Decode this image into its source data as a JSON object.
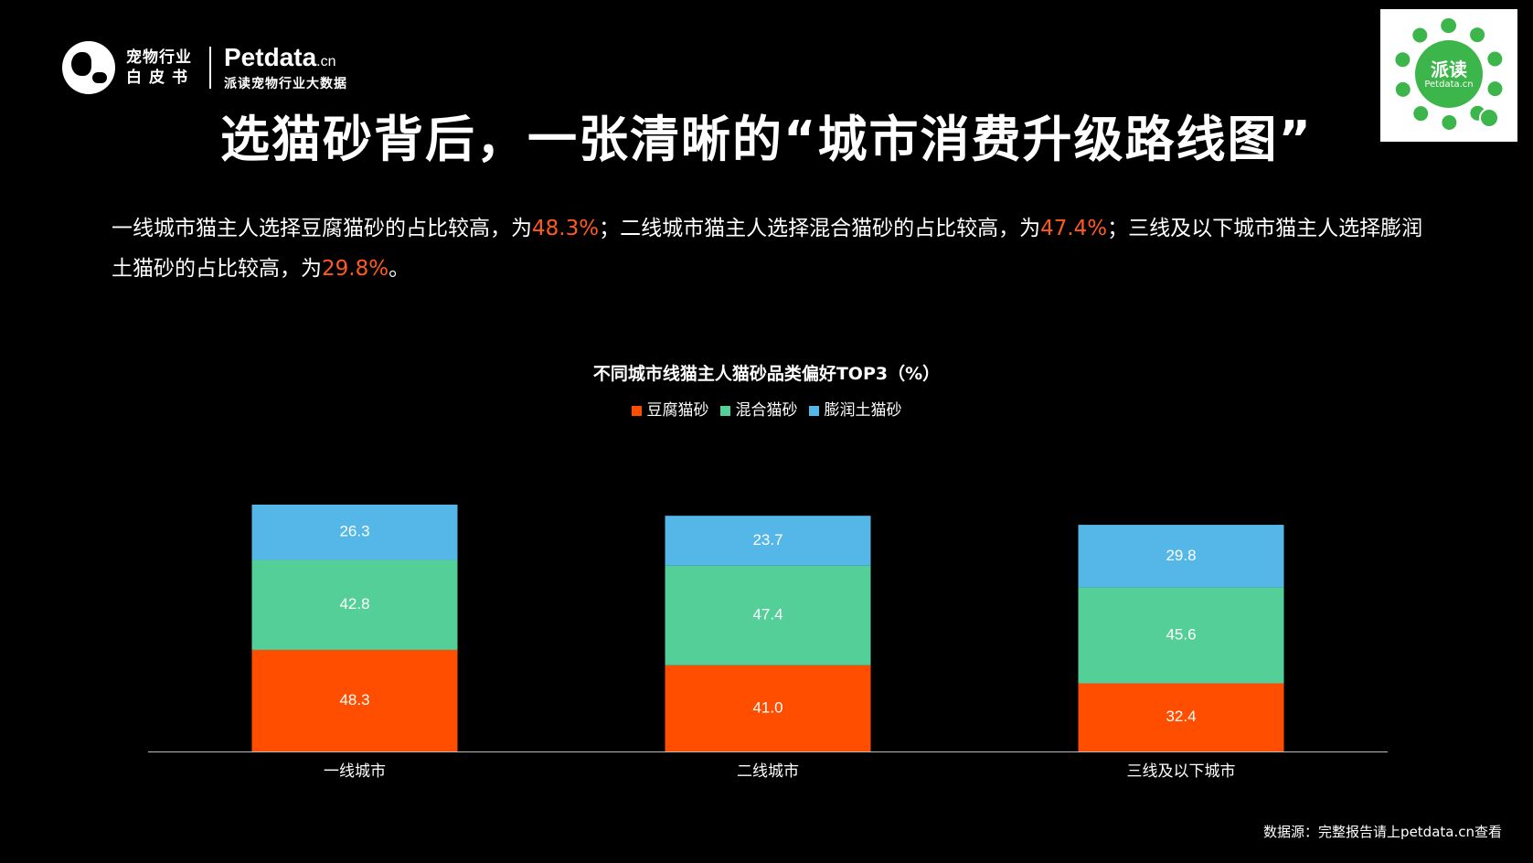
{
  "logo": {
    "cn_line1": "宠物行业",
    "cn_line2": "白皮书",
    "brand": "Petdata",
    "brand_suffix": ".cn",
    "brand_sub": "派读宠物行业大数据"
  },
  "qr": {
    "center_text": "派读",
    "center_sub": "Petdata.cn"
  },
  "title": "选猫砂背后，一张清晰的“城市消费升级路线图”",
  "description": {
    "p1": "一线城市猫主人选择豆腐猫砂的占比较高，为",
    "v1": "48.3%",
    "p2": "；二线城市猫主人选择混合猫砂的占比较高，为",
    "v2": "47.4%",
    "p3": "；三线及以下城市猫主人选择膨润土猫砂的占比较高，为",
    "v3": "29.8%",
    "p4": "。"
  },
  "chart_data": {
    "type": "bar",
    "stacked": true,
    "title": "不同城市线猫主人猫砂品类偏好TOP3（%）",
    "categories": [
      "一线城市",
      "二线城市",
      "三线及以下城市"
    ],
    "series": [
      {
        "name": "豆腐猫砂",
        "color": "#ff4e00",
        "values": [
          48.3,
          41.0,
          32.4
        ]
      },
      {
        "name": "混合猫砂",
        "color": "#55cf98",
        "values": [
          42.8,
          47.4,
          45.6
        ]
      },
      {
        "name": "膨润土猫砂",
        "color": "#55b6e8",
        "values": [
          26.3,
          23.7,
          29.8
        ]
      }
    ],
    "legend_position": "top",
    "grid": false
  },
  "source": "数据源：完整报告请上petdata.cn查看"
}
